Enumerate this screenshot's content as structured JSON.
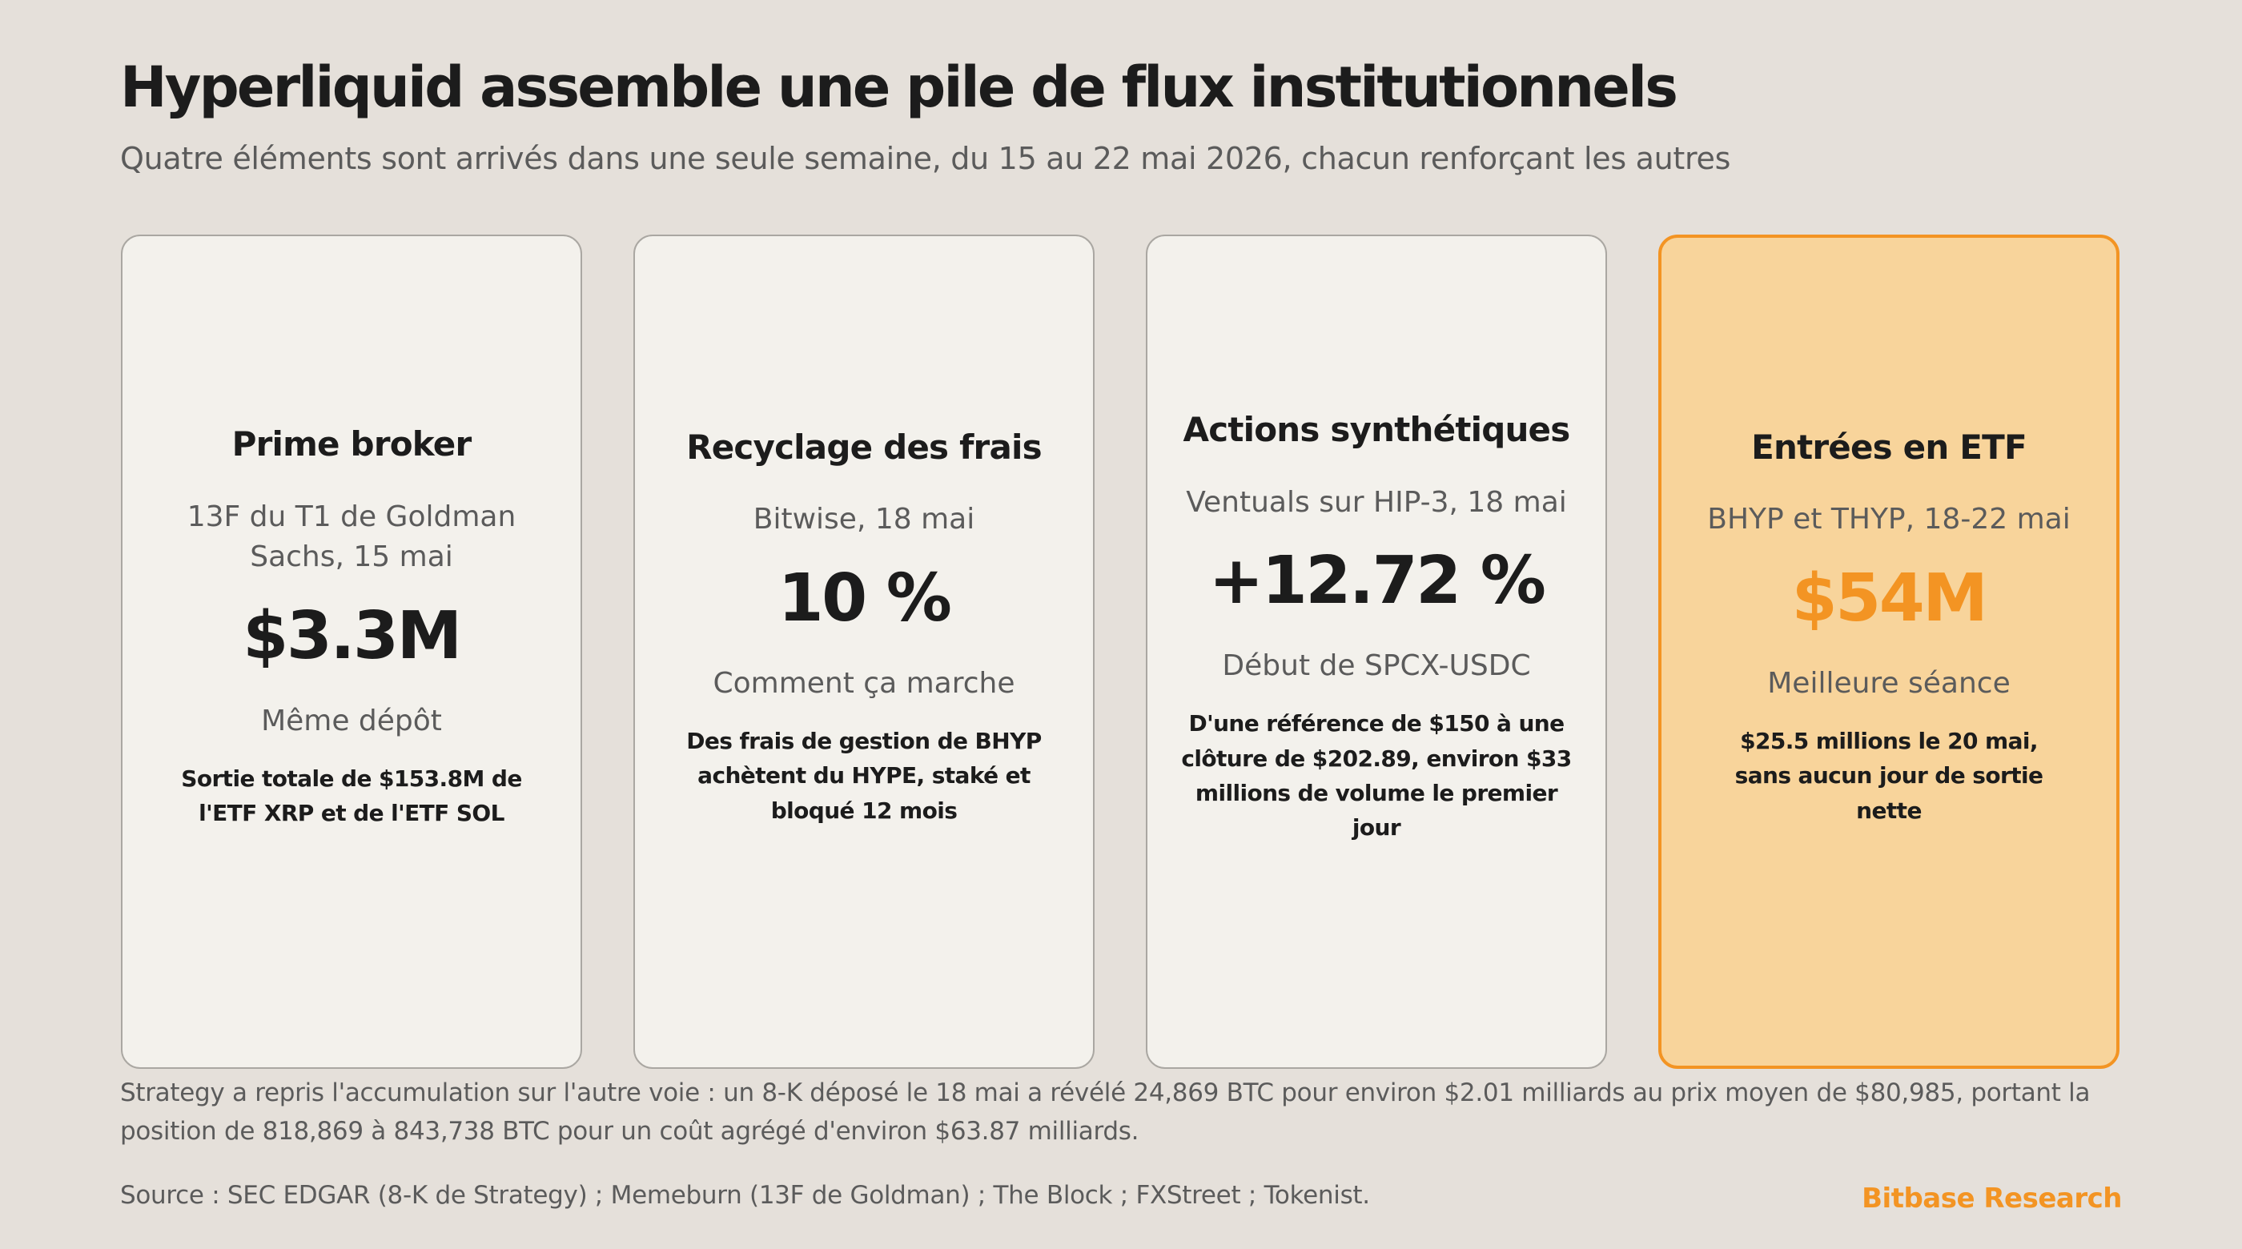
{
  "header": {
    "title": "Hyperliquid assemble une pile de flux institutionnels",
    "subtitle": "Quatre éléments sont arrivés dans une seule semaine, du 15 au 22 mai 2026, chacun renforçant les autres"
  },
  "cards": [
    {
      "title": "Prime broker",
      "meta": "13F du T1 de Goldman Sachs, 15 mai",
      "value": "$3.3M",
      "label": "Même dépôt",
      "desc": "Sortie totale de $153.8M de l'ETF XRP et de l'ETF SOL"
    },
    {
      "title": "Recyclage des frais",
      "meta": "Bitwise, 18 mai",
      "value": "10 %",
      "label": "Comment ça marche",
      "desc": "Des frais de gestion de BHYP achètent du HYPE, staké et bloqué 12 mois"
    },
    {
      "title": "Actions synthétiques",
      "meta": "Ventuals sur HIP-3, 18 mai",
      "value": "+12.72 %",
      "label": "Début de SPCX-USDC",
      "desc": "D'une référence de $150 à une clôture de $202.89, environ $33 millions de volume le premier jour"
    },
    {
      "title": "Entrées en ETF",
      "meta": "BHYP et THYP, 18-22 mai",
      "value": "$54M",
      "label": "Meilleure séance",
      "desc": "$25.5 millions le 20 mai, sans aucun jour de sortie nette"
    }
  ],
  "footer": {
    "note": "Strategy a repris l'accumulation sur l'autre voie : un 8-K déposé le 18 mai a révélé 24,869 BTC pour environ $2.01 milliards au prix moyen de $80,985, portant la position de 818,869 à 843,738 BTC pour un coût agrégé d'environ $63.87 milliards.",
    "source": "Source : SEC EDGAR (8-K de Strategy) ; Memeburn (13F de Goldman) ; The Block ; FXStreet ; Tokenist.",
    "brand": "Bitbase Research"
  },
  "colors": {
    "background": "#e5e0da",
    "card_background": "#f3f1ec",
    "highlight_background": "#f8d49b",
    "accent": "#f39423",
    "text_dark": "#1c1c1c",
    "text_muted": "#5b5b5b"
  }
}
